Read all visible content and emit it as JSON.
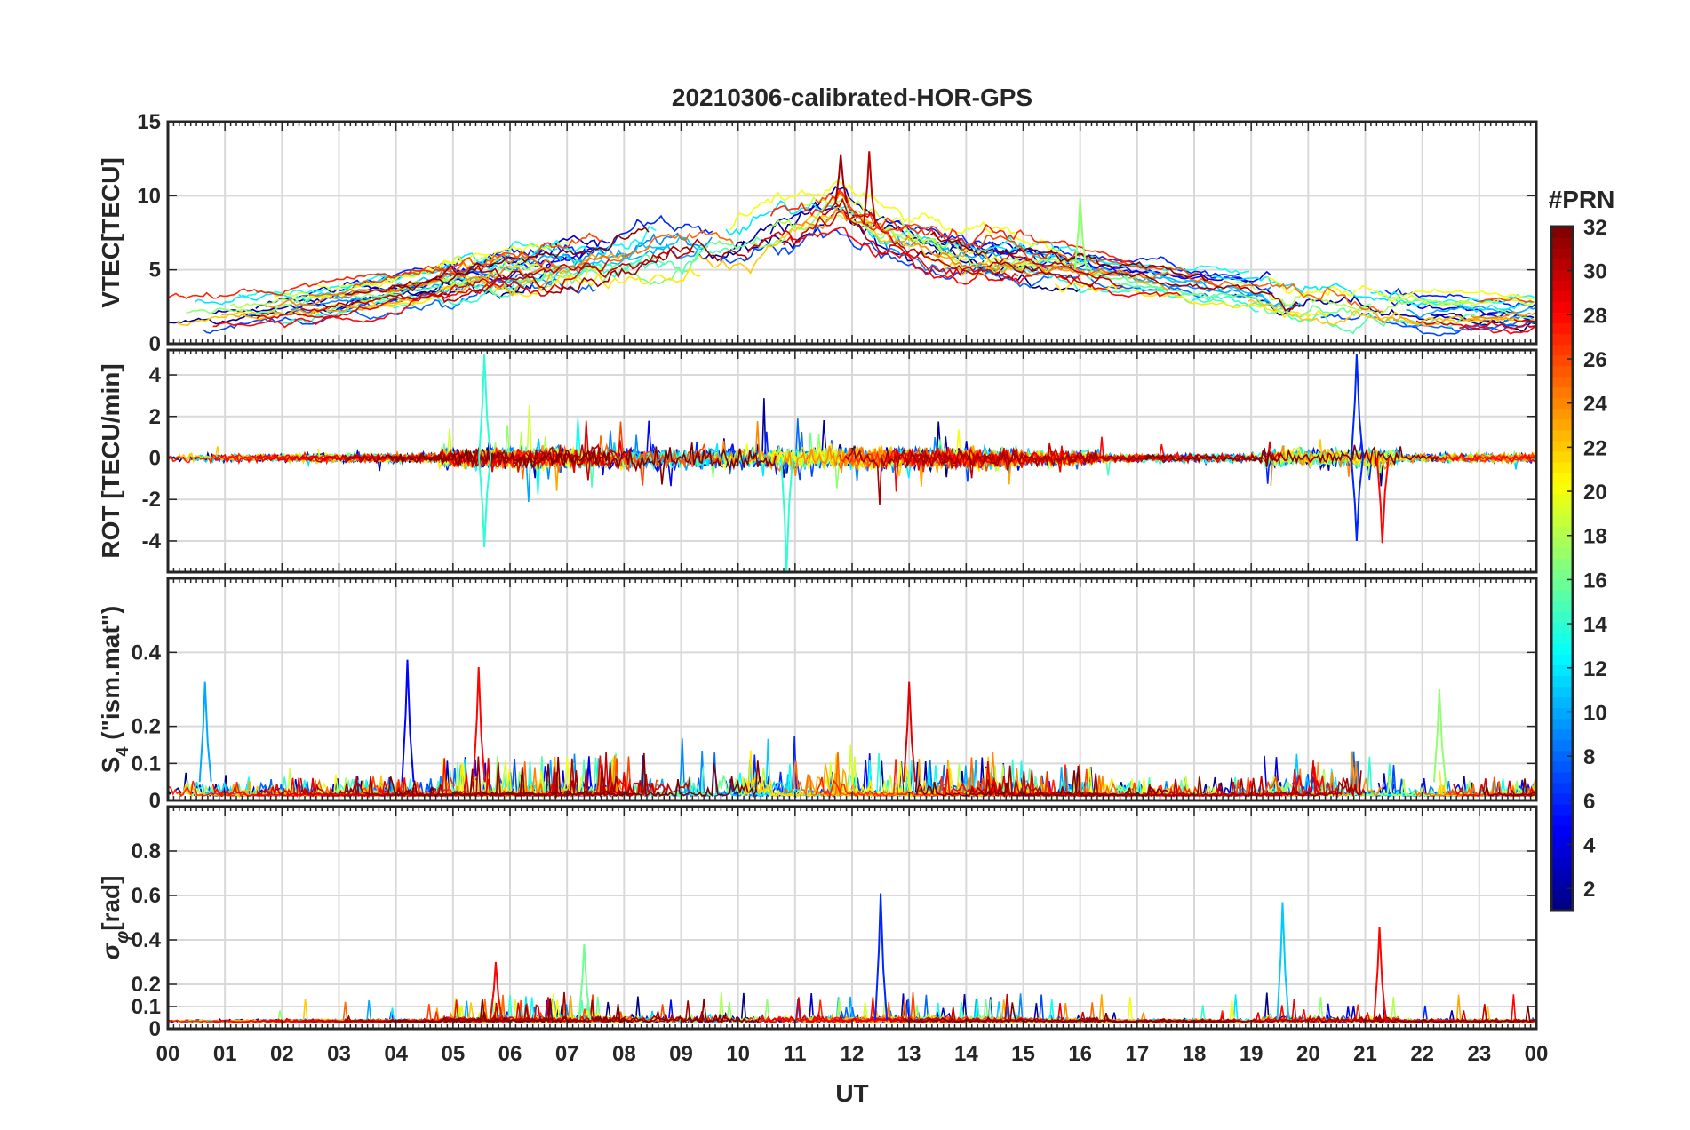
{
  "chart_data": {
    "type": "line",
    "title": "20210306-calibrated-HOR-GPS",
    "xlabel": "UT",
    "xlim": [
      0,
      24
    ],
    "x_ticks": [
      0,
      1,
      2,
      3,
      4,
      5,
      6,
      7,
      8,
      9,
      10,
      11,
      12,
      13,
      14,
      15,
      16,
      17,
      18,
      19,
      20,
      21,
      22,
      23,
      24
    ],
    "x_tick_labels": [
      "00",
      "01",
      "02",
      "03",
      "04",
      "05",
      "06",
      "07",
      "08",
      "09",
      "10",
      "11",
      "12",
      "13",
      "14",
      "15",
      "16",
      "17",
      "18",
      "19",
      "20",
      "21",
      "22",
      "23",
      "00"
    ],
    "colorbar": {
      "label": "#PRN",
      "range": [
        1,
        32
      ],
      "ticks": [
        2,
        4,
        6,
        8,
        10,
        12,
        14,
        16,
        18,
        20,
        22,
        24,
        26,
        28,
        30,
        32
      ],
      "tick_labels": [
        "2",
        "4",
        "6",
        "8",
        "10",
        "12",
        "14",
        "16",
        "18",
        "20",
        "22",
        "24",
        "26",
        "28",
        "30",
        "32"
      ],
      "colormap": "jet"
    },
    "panels": [
      {
        "ylabel": "VTEC[TECU]",
        "ylim": [
          0,
          15
        ],
        "y_ticks": [
          0,
          5,
          10,
          15
        ],
        "y_tick_labels": [
          "0",
          "5",
          "10",
          "15"
        ],
        "series_description": "VTEC per PRN, diurnal rise to ~5-8 TECU at 08-14 UT, peak ~13 TECU near 11.8 UT",
        "profile": {
          "x": [
            0,
            2,
            4,
            6,
            8,
            10,
            11,
            11.8,
            12.5,
            14,
            16,
            18,
            20,
            22,
            24
          ],
          "y": [
            2.0,
            2.6,
            3.6,
            5.0,
            6.0,
            6.8,
            8.0,
            9.5,
            7.5,
            6.0,
            5.0,
            4.0,
            3.0,
            2.2,
            2.0
          ]
        },
        "annotations": [
          {
            "x": 11.8,
            "y": 12.8,
            "prn": 31
          },
          {
            "x": 12.3,
            "y": 13.0,
            "prn": 30
          },
          {
            "x": 16.0,
            "y": 9.8,
            "prn": 17
          }
        ]
      },
      {
        "ylabel": "ROT [TECU/min]",
        "ylim": [
          -5.5,
          5.2
        ],
        "y_ticks": [
          -4,
          -2,
          0,
          2,
          4
        ],
        "y_tick_labels": [
          "-4",
          "-2",
          "0",
          "2",
          "4"
        ],
        "series_description": "Rate of TEC, fluctuating around 0; bursts between 05-15 UT and 19-21.5 UT",
        "annotations": [
          {
            "x": 5.55,
            "y": 5.0,
            "prn": 14
          },
          {
            "x": 5.55,
            "y": -4.3,
            "prn": 14
          },
          {
            "x": 10.85,
            "y": -5.5,
            "prn": 14
          },
          {
            "x": 20.85,
            "y": 5.0,
            "prn": 6
          },
          {
            "x": 20.85,
            "y": -4.0,
            "prn": 6
          },
          {
            "x": 21.3,
            "y": -4.1,
            "prn": 28
          }
        ]
      },
      {
        "ylabel": "S4 (\"ism.mat\")",
        "ylabel_main": "S",
        "ylabel_sub": "4",
        "ylabel_rest": " (\"ism.mat\")",
        "ylim": [
          0,
          0.6
        ],
        "y_ticks": [
          0,
          0.1,
          0.2,
          0.4
        ],
        "y_tick_labels": [
          "0",
          "0.1",
          "0.2",
          "0.4"
        ],
        "series_description": "Amplitude scintillation index, mostly below 0.1, spikes up to ~0.38",
        "annotations": [
          {
            "x": 0.65,
            "y": 0.32,
            "prn": 10
          },
          {
            "x": 4.2,
            "y": 0.38,
            "prn": 5
          },
          {
            "x": 5.45,
            "y": 0.36,
            "prn": 28
          },
          {
            "x": 13.0,
            "y": 0.32,
            "prn": 29
          },
          {
            "x": 22.3,
            "y": 0.3,
            "prn": 17
          }
        ]
      },
      {
        "ylabel": "σφ[rad]",
        "ylabel_main": "σ",
        "ylabel_sub": "φ",
        "ylabel_rest": "[rad]",
        "ylim": [
          0,
          1.0
        ],
        "y_ticks": [
          0,
          0.1,
          0.2,
          0.4,
          0.6,
          0.8
        ],
        "y_tick_labels": [
          "0",
          "0.1",
          "0.2",
          "0.4",
          "0.6",
          "0.8"
        ],
        "series_description": "Phase scintillation index, baseline ~0.03-0.05, spikes up to ~0.6",
        "annotations": [
          {
            "x": 5.75,
            "y": 0.3,
            "prn": 28
          },
          {
            "x": 7.3,
            "y": 0.38,
            "prn": 16
          },
          {
            "x": 12.5,
            "y": 0.61,
            "prn": 6
          },
          {
            "x": 19.55,
            "y": 0.57,
            "prn": 11
          },
          {
            "x": 21.25,
            "y": 0.46,
            "prn": 28
          }
        ]
      }
    ]
  }
}
